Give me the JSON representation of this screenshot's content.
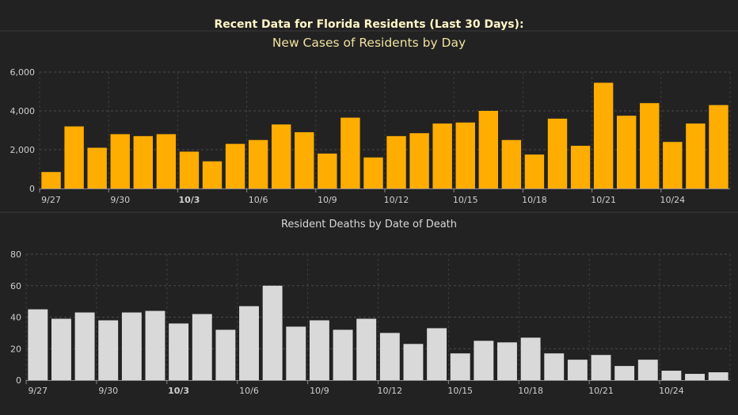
{
  "header": {
    "title": "Recent Data for Florida Residents (Last 30 Days):"
  },
  "chart_data": [
    {
      "type": "bar",
      "title": "New Cases of Residents by Day",
      "xlabel": "",
      "ylabel": "",
      "ylim": [
        0,
        6000
      ],
      "yticks": [
        "0",
        "2,000",
        "4,000",
        "6,000"
      ],
      "grid": true,
      "color": "#ffad00",
      "tick_labels": [
        "9/27",
        "9/30",
        "10/3",
        "10/6",
        "10/9",
        "10/12",
        "10/15",
        "10/18",
        "10/21",
        "10/24"
      ],
      "categories": [
        "9/27",
        "9/28",
        "9/29",
        "9/30",
        "10/1",
        "10/2",
        "10/3",
        "10/4",
        "10/5",
        "10/6",
        "10/7",
        "10/8",
        "10/9",
        "10/10",
        "10/11",
        "10/12",
        "10/13",
        "10/14",
        "10/15",
        "10/16",
        "10/17",
        "10/18",
        "10/19",
        "10/20",
        "10/21",
        "10/22",
        "10/23",
        "10/24",
        "10/25",
        "10/26"
      ],
      "values": [
        850,
        3200,
        2100,
        2800,
        2700,
        2800,
        1900,
        1400,
        2300,
        2500,
        3300,
        2900,
        1800,
        3650,
        1600,
        2700,
        2850,
        3350,
        3400,
        4000,
        2500,
        1750,
        3600,
        2200,
        5450,
        3750,
        4400,
        2400,
        3350,
        4300
      ]
    },
    {
      "type": "bar",
      "title": "Resident Deaths by Date of Death",
      "xlabel": "",
      "ylabel": "",
      "ylim": [
        0,
        80
      ],
      "yticks": [
        "0",
        "20",
        "40",
        "60",
        "80"
      ],
      "grid": true,
      "color": "#d9d9d9",
      "tick_labels": [
        "9/27",
        "9/30",
        "10/3",
        "10/6",
        "10/9",
        "10/12",
        "10/15",
        "10/18",
        "10/21",
        "10/24"
      ],
      "categories": [
        "9/27",
        "9/28",
        "9/29",
        "9/30",
        "10/1",
        "10/2",
        "10/3",
        "10/4",
        "10/5",
        "10/6",
        "10/7",
        "10/8",
        "10/9",
        "10/10",
        "10/11",
        "10/12",
        "10/13",
        "10/14",
        "10/15",
        "10/16",
        "10/17",
        "10/18",
        "10/19",
        "10/20",
        "10/21",
        "10/22",
        "10/23",
        "10/24",
        "10/25",
        "10/26"
      ],
      "values": [
        45,
        39,
        43,
        38,
        43,
        44,
        36,
        42,
        32,
        47,
        60,
        34,
        38,
        32,
        39,
        30,
        23,
        33,
        17,
        25,
        24,
        27,
        17,
        13,
        16,
        9,
        13,
        6,
        4,
        5
      ]
    }
  ]
}
